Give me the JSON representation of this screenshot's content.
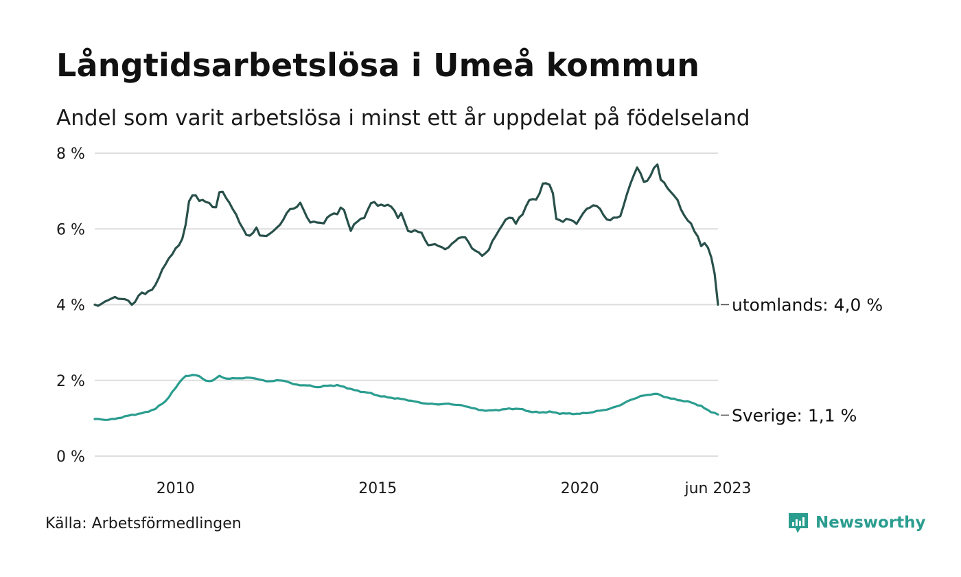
{
  "header": {
    "title": "Långtidsarbetslösa i Umeå kommun",
    "subtitle": "Andel som varit arbetslösa i minst ett år uppdelat på födelseland"
  },
  "footer": {
    "source": "Källa: Arbetsförmedlingen",
    "brand": "Newsworthy",
    "brand_color": "#2a9d8f"
  },
  "chart_data": {
    "type": "line",
    "title": "Långtidsarbetslösa i Umeå kommun",
    "subtitle": "Andel som varit arbetslösa i minst ett år uppdelat på födelseland",
    "xlabel": "",
    "ylabel": "",
    "x_start": 2008.0,
    "x_end": 2023.4167,
    "x_range": [
      2008.0,
      2023.4167
    ],
    "ylim": [
      0,
      8
    ],
    "y_ticks": [
      0,
      2,
      4,
      6,
      8
    ],
    "y_tick_labels": [
      "0 %",
      "2 %",
      "4 %",
      "6 %",
      "8 %"
    ],
    "x_ticks": [
      2010,
      2015,
      2020,
      2023.4167
    ],
    "x_tick_labels": [
      "2010",
      "2015",
      "2020",
      "jun 2023"
    ],
    "grid": true,
    "series": [
      {
        "name": "utomlands",
        "label": "utomlands: 4,0 %",
        "color": "#28504a",
        "anchors": [
          [
            2008.0,
            4.0
          ],
          [
            2008.1,
            3.94
          ],
          [
            2008.25,
            4.1
          ],
          [
            2008.5,
            4.18
          ],
          [
            2008.75,
            4.15
          ],
          [
            2008.95,
            3.97
          ],
          [
            2009.1,
            4.3
          ],
          [
            2009.25,
            4.28
          ],
          [
            2009.5,
            4.5
          ],
          [
            2009.75,
            5.1
          ],
          [
            2010.0,
            5.45
          ],
          [
            2010.2,
            5.8
          ],
          [
            2010.35,
            6.8
          ],
          [
            2010.45,
            6.95
          ],
          [
            2010.6,
            6.75
          ],
          [
            2010.8,
            6.7
          ],
          [
            2011.0,
            6.55
          ],
          [
            2011.1,
            7.05
          ],
          [
            2011.25,
            6.85
          ],
          [
            2011.4,
            6.55
          ],
          [
            2011.55,
            6.25
          ],
          [
            2011.75,
            5.85
          ],
          [
            2011.85,
            5.78
          ],
          [
            2012.0,
            6.05
          ],
          [
            2012.1,
            5.8
          ],
          [
            2012.25,
            5.8
          ],
          [
            2012.4,
            5.95
          ],
          [
            2012.6,
            6.1
          ],
          [
            2012.8,
            6.55
          ],
          [
            2012.95,
            6.5
          ],
          [
            2013.1,
            6.72
          ],
          [
            2013.3,
            6.15
          ],
          [
            2013.5,
            6.2
          ],
          [
            2013.65,
            6.12
          ],
          [
            2013.85,
            6.42
          ],
          [
            2014.0,
            6.4
          ],
          [
            2014.1,
            6.55
          ],
          [
            2014.2,
            6.5
          ],
          [
            2014.3,
            5.93
          ],
          [
            2014.5,
            6.2
          ],
          [
            2014.7,
            6.35
          ],
          [
            2014.85,
            6.72
          ],
          [
            2015.0,
            6.65
          ],
          [
            2015.2,
            6.6
          ],
          [
            2015.35,
            6.62
          ],
          [
            2015.5,
            6.3
          ],
          [
            2015.6,
            6.4
          ],
          [
            2015.75,
            5.95
          ],
          [
            2015.95,
            5.93
          ],
          [
            2016.1,
            5.9
          ],
          [
            2016.25,
            5.55
          ],
          [
            2016.45,
            5.6
          ],
          [
            2016.55,
            5.55
          ],
          [
            2016.7,
            5.42
          ],
          [
            2016.85,
            5.65
          ],
          [
            2017.0,
            5.75
          ],
          [
            2017.2,
            5.78
          ],
          [
            2017.35,
            5.45
          ],
          [
            2017.6,
            5.3
          ],
          [
            2017.75,
            5.45
          ],
          [
            2017.9,
            5.8
          ],
          [
            2018.1,
            6.15
          ],
          [
            2018.3,
            6.35
          ],
          [
            2018.4,
            6.15
          ],
          [
            2018.6,
            6.4
          ],
          [
            2018.75,
            6.8
          ],
          [
            2018.9,
            6.75
          ],
          [
            2019.0,
            6.9
          ],
          [
            2019.1,
            7.3
          ],
          [
            2019.2,
            7.15
          ],
          [
            2019.3,
            7.2
          ],
          [
            2019.4,
            6.3
          ],
          [
            2019.55,
            6.2
          ],
          [
            2019.75,
            6.25
          ],
          [
            2019.95,
            6.15
          ],
          [
            2020.1,
            6.45
          ],
          [
            2020.25,
            6.6
          ],
          [
            2020.4,
            6.62
          ],
          [
            2020.55,
            6.45
          ],
          [
            2020.7,
            6.2
          ],
          [
            2020.85,
            6.28
          ],
          [
            2021.0,
            6.35
          ],
          [
            2021.15,
            6.85
          ],
          [
            2021.3,
            7.35
          ],
          [
            2021.45,
            7.72
          ],
          [
            2021.55,
            7.2
          ],
          [
            2021.7,
            7.3
          ],
          [
            2021.8,
            7.55
          ],
          [
            2021.9,
            7.75
          ],
          [
            2022.0,
            7.3
          ],
          [
            2022.1,
            7.22
          ],
          [
            2022.25,
            6.95
          ],
          [
            2022.4,
            6.8
          ],
          [
            2022.6,
            6.3
          ],
          [
            2022.75,
            6.12
          ],
          [
            2022.9,
            5.85
          ],
          [
            2023.0,
            5.55
          ],
          [
            2023.1,
            5.6
          ],
          [
            2023.2,
            5.5
          ],
          [
            2023.25,
            5.25
          ],
          [
            2023.35,
            4.75
          ],
          [
            2023.4167,
            4.0
          ]
        ]
      },
      {
        "name": "Sverige",
        "label": "Sverige: 1,1 %",
        "color": "#2a9d8f",
        "anchors": [
          [
            2008.0,
            0.98
          ],
          [
            2008.25,
            0.96
          ],
          [
            2008.5,
            0.98
          ],
          [
            2008.75,
            1.05
          ],
          [
            2009.0,
            1.1
          ],
          [
            2009.25,
            1.15
          ],
          [
            2009.5,
            1.25
          ],
          [
            2009.75,
            1.45
          ],
          [
            2010.0,
            1.8
          ],
          [
            2010.1,
            1.95
          ],
          [
            2010.2,
            2.1
          ],
          [
            2010.35,
            2.12
          ],
          [
            2010.5,
            2.15
          ],
          [
            2010.6,
            2.1
          ],
          [
            2010.75,
            1.98
          ],
          [
            2010.95,
            2.0
          ],
          [
            2011.05,
            2.12
          ],
          [
            2011.25,
            2.05
          ],
          [
            2011.5,
            2.05
          ],
          [
            2011.75,
            2.07
          ],
          [
            2012.0,
            2.05
          ],
          [
            2012.25,
            1.97
          ],
          [
            2012.5,
            2.0
          ],
          [
            2012.75,
            1.98
          ],
          [
            2012.9,
            1.9
          ],
          [
            2013.0,
            1.88
          ],
          [
            2013.25,
            1.87
          ],
          [
            2013.5,
            1.82
          ],
          [
            2013.75,
            1.86
          ],
          [
            2014.0,
            1.87
          ],
          [
            2014.25,
            1.8
          ],
          [
            2014.5,
            1.72
          ],
          [
            2014.75,
            1.68
          ],
          [
            2015.0,
            1.6
          ],
          [
            2015.25,
            1.55
          ],
          [
            2015.5,
            1.52
          ],
          [
            2015.75,
            1.48
          ],
          [
            2016.0,
            1.42
          ],
          [
            2016.25,
            1.38
          ],
          [
            2016.5,
            1.37
          ],
          [
            2016.75,
            1.38
          ],
          [
            2017.0,
            1.35
          ],
          [
            2017.25,
            1.3
          ],
          [
            2017.5,
            1.22
          ],
          [
            2017.75,
            1.2
          ],
          [
            2018.0,
            1.22
          ],
          [
            2018.25,
            1.25
          ],
          [
            2018.5,
            1.25
          ],
          [
            2018.75,
            1.18
          ],
          [
            2019.0,
            1.15
          ],
          [
            2019.25,
            1.17
          ],
          [
            2019.5,
            1.13
          ],
          [
            2019.75,
            1.12
          ],
          [
            2020.0,
            1.12
          ],
          [
            2020.25,
            1.15
          ],
          [
            2020.5,
            1.2
          ],
          [
            2020.75,
            1.25
          ],
          [
            2021.0,
            1.35
          ],
          [
            2021.25,
            1.48
          ],
          [
            2021.5,
            1.58
          ],
          [
            2021.75,
            1.63
          ],
          [
            2021.9,
            1.65
          ],
          [
            2022.0,
            1.6
          ],
          [
            2022.25,
            1.52
          ],
          [
            2022.5,
            1.47
          ],
          [
            2022.75,
            1.42
          ],
          [
            2023.0,
            1.32
          ],
          [
            2023.1,
            1.25
          ],
          [
            2023.25,
            1.17
          ],
          [
            2023.4167,
            1.1
          ]
        ]
      }
    ]
  }
}
